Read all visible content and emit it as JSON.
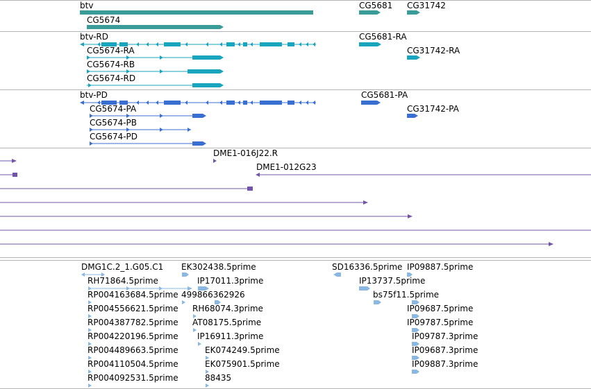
{
  "colors": {
    "gene": "#3a9c98",
    "transcript_ra": "#19a5be",
    "transcript_pa": "#3a6fd2",
    "clone": "#7355a8",
    "est": "#8ab8e0",
    "separator": "#b4b4b4"
  },
  "genes": {
    "btv": "btv",
    "cg5674": "CG5674",
    "cg5681": "CG5681",
    "cg31742": "CG31742"
  },
  "transcripts": {
    "btv_rd": "btv-RD",
    "cg5674_ra": "CG5674-RA",
    "cg5674_rb": "CG5674-RB",
    "cg5674_rd": "CG5674-RD",
    "cg5681_ra": "CG5681-RA",
    "cg31742_ra": "CG31742-RA"
  },
  "proteins": {
    "btv_pd": "btv-PD",
    "cg5674_pa": "CG5674-PA",
    "cg5674_pb": "CG5674-PB",
    "cg5674_pd": "CG5674-PD",
    "cg5681_pa": "CG5681-PA",
    "cg31742_pa": "CG31742-PA"
  },
  "clones": {
    "dme1_016j22": "DME1-016J22.R",
    "dme1_012g23": "DME1-012G23"
  },
  "ests": {
    "col1": [
      "DMG1C.2_1.G05.C1",
      "RH71864.5prime",
      "RP004163684.5prime",
      "RP004556621.5prime",
      "RP004387782.5prime",
      "RP004220196.5prime",
      "RP004489663.5prime",
      "RP004110504.5prime",
      "RP004092531.5prime"
    ],
    "col2": [
      "EK302438.5prime",
      "IP17011.3prime",
      "499866362926",
      "RH68074.3prime",
      "AT08175.5prime",
      "IP16911.3prime",
      "EK074249.5prime",
      "EK075901.5prime",
      "88435"
    ],
    "col3": [
      "SD16336.5prime",
      "IP13737.5prime",
      "bs75f11.5prime"
    ],
    "col4": [
      "IP09887.5prime",
      "IP09687.5prime",
      "IP09787.5prime",
      "IP09787.3prime",
      "IP09687.3prime",
      "IP09887.3prime"
    ]
  }
}
